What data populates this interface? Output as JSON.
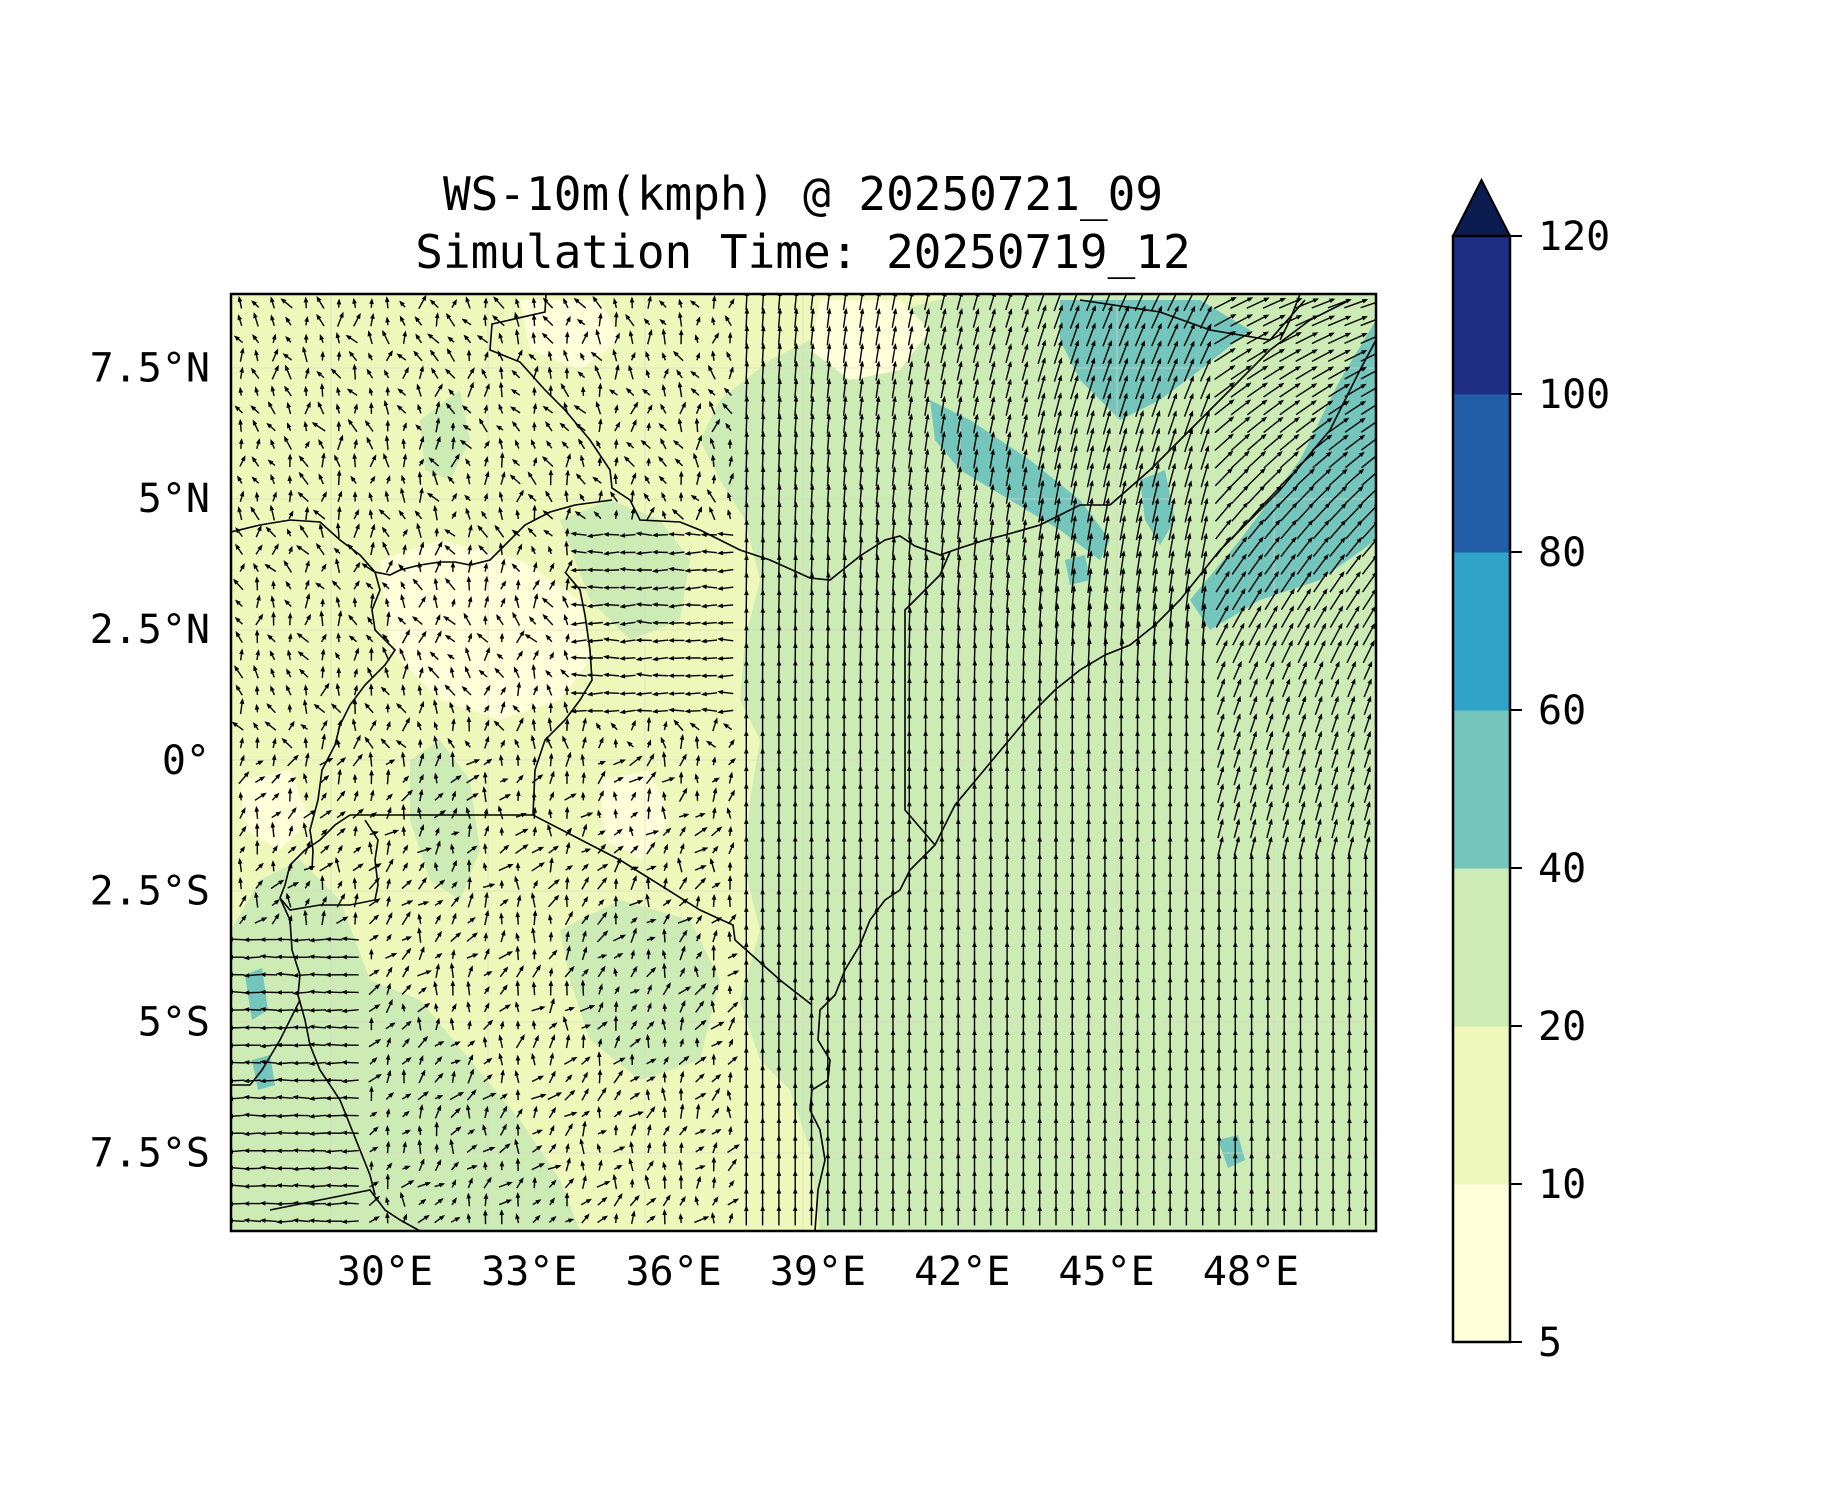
{
  "title": {
    "line1": "WS-10m(kmph) @ 20250721_09",
    "line2": "Simulation Time: 20250719_12"
  },
  "map": {
    "region": "East Africa",
    "lon_range": [
      26.8,
      50.6
    ],
    "lat_range": [
      -9.0,
      8.9
    ],
    "x_ticks": [
      {
        "value": 30,
        "label": "30°E"
      },
      {
        "value": 33,
        "label": "33°E"
      },
      {
        "value": 36,
        "label": "36°E"
      },
      {
        "value": 39,
        "label": "39°E"
      },
      {
        "value": 42,
        "label": "42°E"
      },
      {
        "value": 45,
        "label": "45°E"
      },
      {
        "value": 48,
        "label": "48°E"
      }
    ],
    "y_ticks": [
      {
        "value": 7.5,
        "label": "7.5°N"
      },
      {
        "value": 5,
        "label": "5°N"
      },
      {
        "value": 2.5,
        "label": "2.5°N"
      },
      {
        "value": 0,
        "label": "0°"
      },
      {
        "value": -2.5,
        "label": "2.5°S"
      },
      {
        "value": -5,
        "label": "5°S"
      },
      {
        "value": -7.5,
        "label": "7.5°S"
      }
    ],
    "field": "10 m wind speed (kmph) filled contours with wind vectors",
    "gridlines": true
  },
  "colorbar": {
    "extend": "max",
    "bins": [
      {
        "from": 5,
        "to": 10,
        "color": "#ffffd9"
      },
      {
        "from": 10,
        "to": 20,
        "color": "#eef8bb"
      },
      {
        "from": 20,
        "to": 40,
        "color": "#cdebb4"
      },
      {
        "from": 40,
        "to": 60,
        "color": "#74c6bc"
      },
      {
        "from": 60,
        "to": 80,
        "color": "#31a3c8"
      },
      {
        "from": 80,
        "to": 100,
        "color": "#225ea8"
      },
      {
        "from": 100,
        "to": 120,
        "color": "#1d2e83"
      }
    ],
    "extend_color": "#0b1d50",
    "ticks": [
      {
        "value": 5,
        "label": "5"
      },
      {
        "value": 10,
        "label": "10"
      },
      {
        "value": 20,
        "label": "20"
      },
      {
        "value": 40,
        "label": "40"
      },
      {
        "value": 60,
        "label": "60"
      },
      {
        "value": 80,
        "label": "80"
      },
      {
        "value": 100,
        "label": "100"
      },
      {
        "value": 120,
        "label": "120"
      }
    ]
  }
}
